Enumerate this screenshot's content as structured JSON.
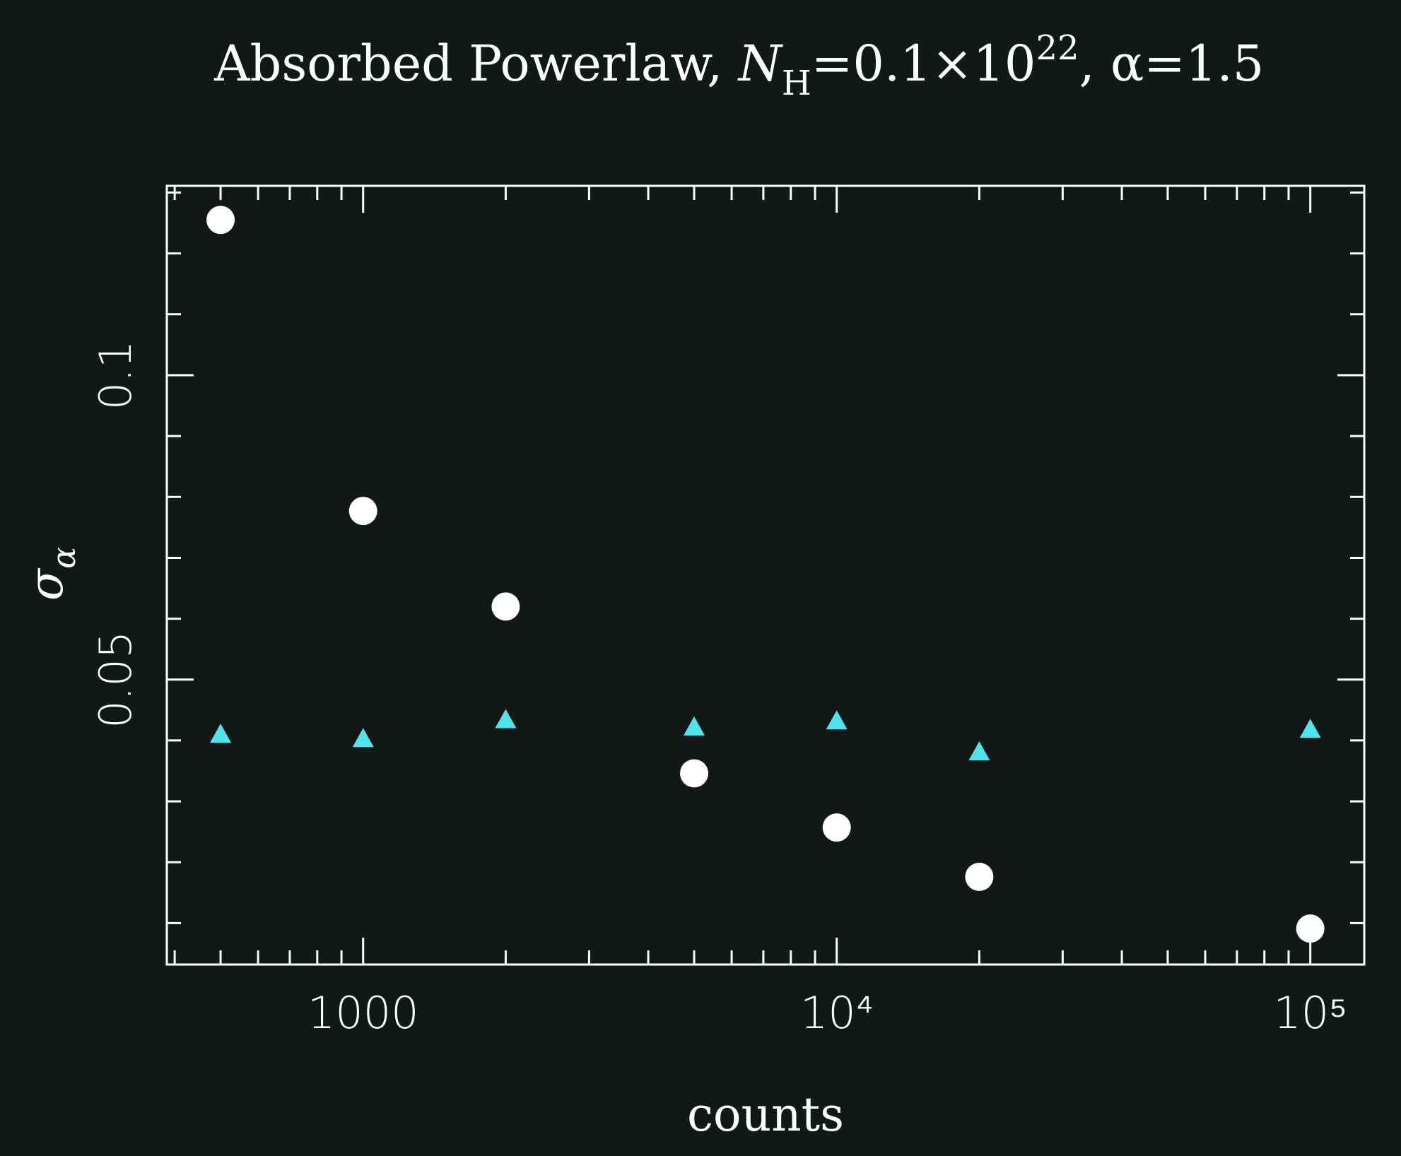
{
  "chart_data": {
    "type": "scatter",
    "title": [
      "Absorbed Powerlaw, ",
      "N",
      "H",
      "=0.1×10",
      "22",
      ", α=1.5"
    ],
    "x_label": "counts",
    "y_label": [
      "σ",
      "α"
    ],
    "x_scale": "log",
    "x": [
      500,
      1000,
      2000,
      5000,
      10000,
      20000,
      100000
    ],
    "series": [
      {
        "marker": "circle",
        "color": "#ffffff",
        "values": [
          0.1255,
          0.0777,
          0.062,
          0.0346,
          0.0257,
          0.0176,
          0.0091
        ]
      },
      {
        "marker": "triangle",
        "color": "#4fe3ec",
        "values": [
          0.0409,
          0.0402,
          0.0433,
          0.0421,
          0.0431,
          0.038,
          0.0417
        ]
      }
    ],
    "xlim": [
      385,
      130000
    ],
    "ylim": [
      0.0032,
      0.1311
    ],
    "xticks": [
      1000,
      {
        "value": 10000,
        "label": "10⁴"
      },
      {
        "value": 100000,
        "label": "10⁵"
      }
    ],
    "xminor": [
      400,
      500,
      600,
      700,
      800,
      900,
      2000,
      3000,
      4000,
      5000,
      6000,
      7000,
      8000,
      9000,
      20000,
      30000,
      40000,
      50000,
      60000,
      70000,
      80000,
      90000
    ],
    "yticks": [
      0.05,
      0.1
    ],
    "yminor": [
      0.01,
      0.02,
      0.03,
      0.04,
      0.06,
      0.07,
      0.08,
      0.09,
      0.11,
      0.12,
      0.13
    ]
  }
}
